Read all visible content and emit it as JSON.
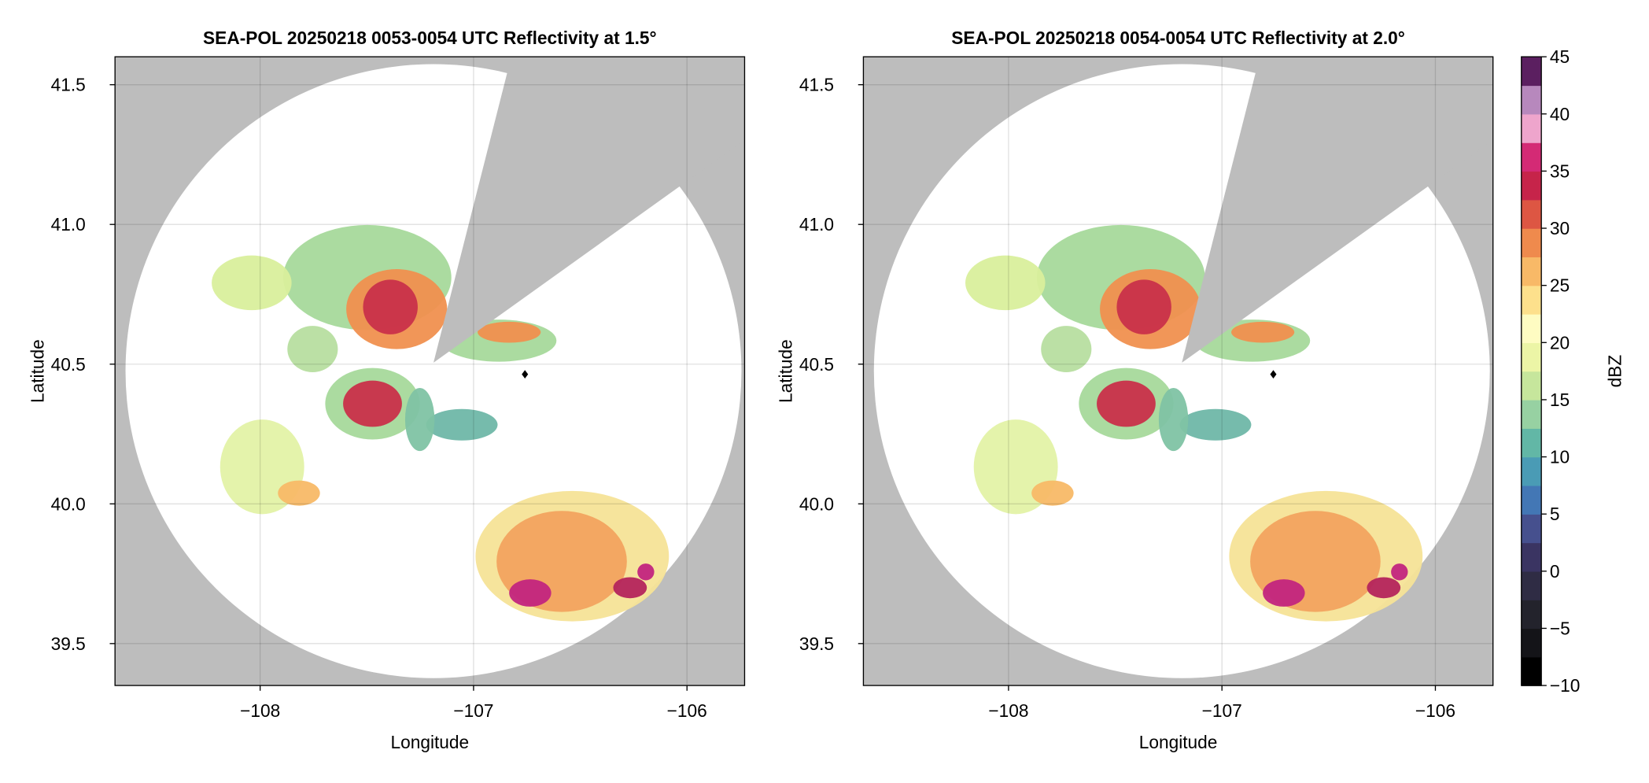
{
  "chart_data": [
    {
      "type": "radar",
      "title": "SEA-POL 20250218 0053-0054 UTC Reflectivity at 1.5°",
      "xlabel": "Longitude",
      "ylabel": "Latitude",
      "xlim": [
        -108.68,
        -105.73
      ],
      "ylim": [
        39.35,
        41.6
      ],
      "xticks": [
        {
          "value": -108,
          "label": "−108"
        },
        {
          "value": -107,
          "label": "−107"
        },
        {
          "value": -106,
          "label": "−106"
        }
      ],
      "yticks": [
        39.5,
        {
          "value": 40,
          "label": "40.0"
        },
        40.5,
        {
          "value": 41,
          "label": "41.0"
        },
        41.5
      ],
      "grid": true
    },
    {
      "type": "radar",
      "title": "SEA-POL 20250218 0054-0054 UTC Reflectivity at 2.0°",
      "xlabel": "Longitude",
      "ylabel": "Latitude",
      "xlim": [
        -108.68,
        -105.73
      ],
      "ylim": [
        39.35,
        41.6
      ],
      "xticks": [
        {
          "value": -108,
          "label": "−108"
        },
        {
          "value": -107,
          "label": "−107"
        },
        {
          "value": -106,
          "label": "−106"
        }
      ],
      "yticks": [
        39.5,
        {
          "value": 40,
          "label": "40.0"
        },
        40.5,
        {
          "value": 41,
          "label": "41.0"
        },
        41.5
      ],
      "grid": true
    }
  ],
  "colorbar": {
    "label": "dBZ",
    "clim": [
      -10,
      45
    ],
    "ticks": [
      {
        "value": -10,
        "label": "−10"
      },
      {
        "value": -5,
        "label": "−5"
      },
      0,
      5,
      10,
      15,
      20,
      25,
      30,
      35,
      40,
      45
    ],
    "colors": [
      "#000000",
      "#141418",
      "#23232c",
      "#2f2c44",
      "#3a3462",
      "#46508e",
      "#4377b5",
      "#4a9bb5",
      "#62b7a6",
      "#97d1a2",
      "#c6e69c",
      "#ecf5a6",
      "#fefcc2",
      "#fde08c",
      "#f8b967",
      "#ef8a4d",
      "#dd5643",
      "#c6244a",
      "#d42a75",
      "#eea5cc",
      "#b788bd",
      "#5b1f60"
    ]
  }
}
